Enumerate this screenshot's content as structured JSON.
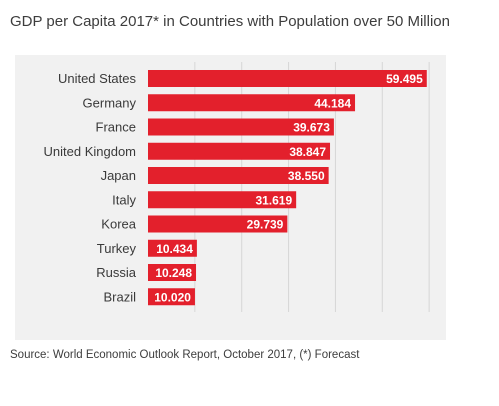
{
  "chart_data": {
    "type": "bar",
    "orientation": "horizontal",
    "title": "GDP per Capita 2017* in Countries with Population over 50 Million",
    "source": "Source: World Economic Outlook Report, October 2017, (*) Forecast",
    "categories": [
      "United States",
      "Germany",
      "France",
      "United Kingdom",
      "Japan",
      "Italy",
      "Korea",
      "Turkey",
      "Russia",
      "Brazil"
    ],
    "values": [
      59495,
      44184,
      39673,
      38847,
      38550,
      31619,
      29739,
      10434,
      10248,
      10020
    ],
    "value_labels": [
      "59.495",
      "44.184",
      "39.673",
      "38.847",
      "38.550",
      "31.619",
      "29.739",
      "10.434",
      "10.248",
      "10.020"
    ],
    "xlim": [
      0,
      70000
    ],
    "grid": true,
    "bar_color": "#e3202c",
    "panel_color": "#f1f1f1"
  }
}
